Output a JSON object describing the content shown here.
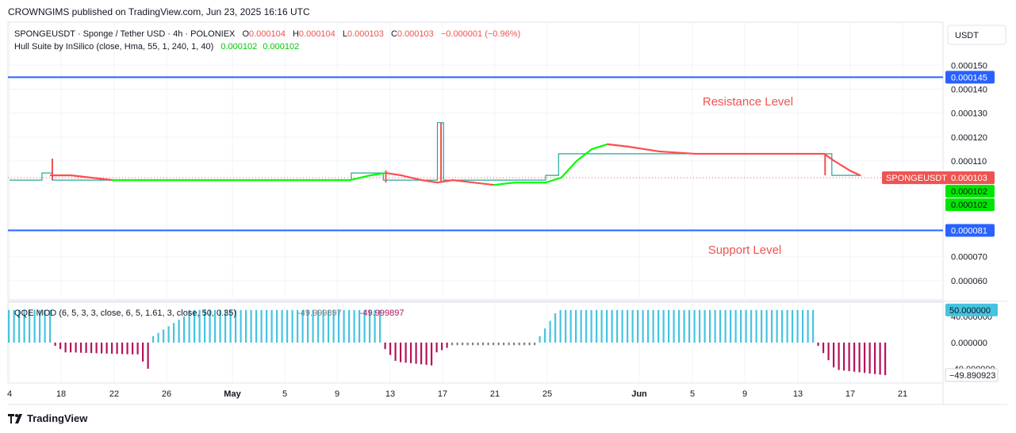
{
  "header": {
    "published": "CROWNGIMS published on TradingView.com, Jun 23, 2025 16:16 UTC"
  },
  "footer": {
    "brand": "TradingView"
  },
  "currency_button": "USDT",
  "legend": {
    "symbol": "SPONGEUSDT · Sponge / Tether USD · 4h · POLONIEX",
    "o_label": "O",
    "o_value": "0.000104",
    "h_label": "H",
    "h_value": "0.000104",
    "l_label": "L",
    "l_value": "0.000103",
    "c_label": "C",
    "c_value": "0.000103",
    "change": "−0.000001 (−0.96%)",
    "indicator": "Hull Suite by InSilico (close, Hma, 55, 1, 240, 1, 40)",
    "ind_value1": "0.000102",
    "ind_value2": "0.000102",
    "qqe": "QQE MOD (6, 5, 3, 3, close, 6, 5, 1.61, 3, close, 50, 0.35)",
    "qqe_value1": "-49.999897",
    "qqe_value2": "-49.999897"
  },
  "annotations": {
    "resistance": "Resistance Level",
    "support": "Support Level"
  },
  "colors": {
    "up": "#26a69a",
    "down": "#ef5350",
    "level": "#2962ff",
    "hull_up": "#00ff00",
    "hull_down": "#ff4d4d",
    "qqe_pos": "#45c4e0",
    "qqe_neg": "#b5135c",
    "qqe_neutral": "#808080",
    "price_tag": "#ef5350",
    "ind_tag": "#00e600"
  },
  "chart_data": [
    {
      "type": "line",
      "title": "SPONGEUSDT · Sponge / Tether USD · 4h · POLONIEX",
      "x_labels": [
        "4",
        "18",
        "22",
        "26",
        "May",
        "5",
        "9",
        "13",
        "17",
        "21",
        "25",
        "Jun",
        "5",
        "9",
        "13",
        "17",
        "21"
      ],
      "y_ticks": [
        "0.000150",
        "0.000140",
        "0.000130",
        "0.000120",
        "0.000110",
        "0.000070",
        "0.000060"
      ],
      "ylim": [
        5.2e-05,
        0.000168
      ],
      "levels": [
        {
          "name": "Resistance Level",
          "value": 0.000145,
          "label": "0.000145"
        },
        {
          "name": "Support Level",
          "value": 8.1e-05,
          "label": "0.000081"
        }
      ],
      "price": {
        "name": "SPONGEUSDT",
        "value": 0.000103,
        "label": "0.000103"
      },
      "indicator_tags": [
        "0.000102",
        "0.000102"
      ],
      "step_price": [
        [
          0,
          0.000102
        ],
        [
          6.3,
          0.000102
        ],
        [
          6.3,
          0.000105
        ],
        [
          8.3,
          0.000105
        ],
        [
          8.3,
          0.000102
        ],
        [
          66.3,
          0.000102
        ],
        [
          66.3,
          0.000105
        ],
        [
          72.5,
          0.000105
        ],
        [
          72.5,
          0.000102
        ],
        [
          83,
          0.000102
        ],
        [
          83,
          0.000126
        ],
        [
          84.2,
          0.000126
        ],
        [
          84.2,
          0.000102
        ],
        [
          104,
          0.000102
        ],
        [
          104,
          0.000104
        ],
        [
          106.5,
          0.000104
        ],
        [
          106.5,
          0.000113
        ],
        [
          159.5,
          0.000113
        ],
        [
          159.5,
          0.000104
        ],
        [
          165,
          0.000104
        ]
      ],
      "spikes": [
        {
          "x": 8.3,
          "low": 0.000102,
          "high": 0.000111,
          "dir": "down"
        },
        {
          "x": 73,
          "low": 0.000101,
          "high": 0.000106,
          "dir": "down"
        },
        {
          "x": 83.7,
          "low": 0.000101,
          "high": 0.000126,
          "dir": "down"
        },
        {
          "x": 158.2,
          "low": 0.000104,
          "high": 0.000113,
          "dir": "down"
        }
      ],
      "hull": [
        [
          8,
          0.000104,
          "d"
        ],
        [
          12,
          0.000104,
          "d"
        ],
        [
          16,
          0.000103,
          "d"
        ],
        [
          20,
          0.000102,
          "g"
        ],
        [
          30,
          0.000102,
          "g"
        ],
        [
          40,
          0.000102,
          "g"
        ],
        [
          50,
          0.000102,
          "g"
        ],
        [
          60,
          0.000102,
          "g"
        ],
        [
          66,
          0.000102,
          "g"
        ],
        [
          70,
          0.000104,
          "g"
        ],
        [
          73,
          0.000105,
          "d"
        ],
        [
          76,
          0.000104,
          "d"
        ],
        [
          80,
          0.000102,
          "d"
        ],
        [
          83,
          0.000101,
          "d"
        ],
        [
          86,
          0.000102,
          "d"
        ],
        [
          90,
          0.000101,
          "d"
        ],
        [
          94,
          0.0001,
          "g"
        ],
        [
          98,
          0.000101,
          "g"
        ],
        [
          104,
          0.000101,
          "g"
        ],
        [
          107,
          0.000103,
          "g"
        ],
        [
          110,
          0.00011,
          "g"
        ],
        [
          113,
          0.000115,
          "g"
        ],
        [
          116,
          0.000117,
          "d"
        ],
        [
          120,
          0.000116,
          "d"
        ],
        [
          126,
          0.000114,
          "d"
        ],
        [
          133,
          0.000113,
          "d"
        ],
        [
          158,
          0.000113,
          "d"
        ],
        [
          160,
          0.00011,
          "d"
        ],
        [
          163,
          0.000106,
          "d"
        ],
        [
          165,
          0.000104,
          "d"
        ]
      ]
    },
    {
      "type": "bar",
      "title": "QQE MOD (6, 5, 3, 3, close, 6, 5, 1.61, 3, close, 50, 0.35)",
      "y_ticks": [
        "40.000000",
        "0.000000",
        "-40.000000"
      ],
      "ylim": [
        -62,
        62
      ],
      "tags": [
        {
          "value": 50,
          "label": "50.000000",
          "color": "#45c4e0"
        },
        {
          "value": -49.890923,
          "label": "−49.890923",
          "color": "#ffffff"
        }
      ],
      "segments": [
        {
          "from": 0,
          "to": 9,
          "start": 50,
          "end": 50,
          "style": "pos"
        },
        {
          "from": 9,
          "to": 12,
          "start": -5,
          "end": -15,
          "style": "neg"
        },
        {
          "from": 12,
          "to": 25,
          "start": -15,
          "end": -18,
          "style": "neg"
        },
        {
          "from": 25,
          "to": 28,
          "start": -18,
          "end": -40,
          "style": "neg"
        },
        {
          "from": 28,
          "to": 35,
          "start": 10,
          "end": 40,
          "style": "pos"
        },
        {
          "from": 35,
          "to": 73,
          "start": 50,
          "end": 50,
          "style": "pos"
        },
        {
          "from": 73,
          "to": 76,
          "start": -10,
          "end": -28,
          "style": "neg"
        },
        {
          "from": 76,
          "to": 83,
          "start": -30,
          "end": -35,
          "style": "neg"
        },
        {
          "from": 83,
          "to": 86,
          "start": -15,
          "end": -8,
          "style": "neg"
        },
        {
          "from": 86,
          "to": 103,
          "start": -4,
          "end": -4,
          "style": "neutral"
        },
        {
          "from": 103,
          "to": 107,
          "start": 10,
          "end": 45,
          "style": "pos"
        },
        {
          "from": 107,
          "to": 157,
          "start": 50,
          "end": 50,
          "style": "pos"
        },
        {
          "from": 157,
          "to": 161,
          "start": -5,
          "end": -38,
          "style": "neg"
        },
        {
          "from": 161,
          "to": 171,
          "start": -42,
          "end": -50,
          "style": "neg"
        }
      ]
    }
  ]
}
